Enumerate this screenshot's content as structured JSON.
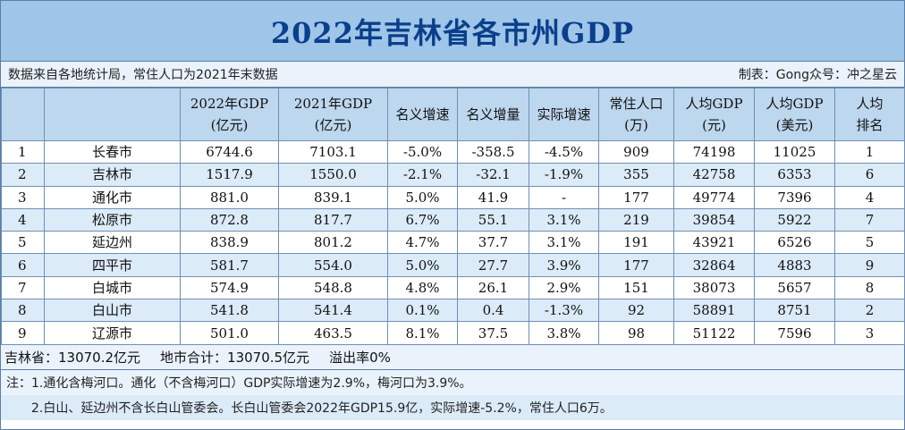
{
  "title": "2022年吉林省各市州GDP",
  "source_left": "数据来自各地统计局，常住人口为2021年末数据",
  "source_right": "制表：Gong众号：冲之星云",
  "headers": [
    {
      "l1": "",
      "l2": ""
    },
    {
      "l1": "",
      "l2": ""
    },
    {
      "l1": "2022年GDP",
      "l2": "(亿元)"
    },
    {
      "l1": "2021年GDP",
      "l2": "(亿元)"
    },
    {
      "l1": "名义增速",
      "l2": ""
    },
    {
      "l1": "名义增量",
      "l2": ""
    },
    {
      "l1": "实际增速",
      "l2": ""
    },
    {
      "l1": "常住人口",
      "l2": "(万)"
    },
    {
      "l1": "人均GDP",
      "l2": "(元)"
    },
    {
      "l1": "人均GDP",
      "l2": "(美元)"
    },
    {
      "l1": "人均",
      "l2": "排名"
    }
  ],
  "rows": [
    [
      "1",
      "长春市",
      "6744.6",
      "7103.1",
      "-5.0%",
      "-358.5",
      "-4.5%",
      "909",
      "74198",
      "11025",
      "1"
    ],
    [
      "2",
      "吉林市",
      "1517.9",
      "1550.0",
      "-2.1%",
      "-32.1",
      "-1.9%",
      "355",
      "42758",
      "6353",
      "6"
    ],
    [
      "3",
      "通化市",
      "881.0",
      "839.1",
      "5.0%",
      "41.9",
      "-",
      "177",
      "49774",
      "7396",
      "4"
    ],
    [
      "4",
      "松原市",
      "872.8",
      "817.7",
      "6.7%",
      "55.1",
      "3.1%",
      "219",
      "39854",
      "5922",
      "7"
    ],
    [
      "5",
      "延边州",
      "838.9",
      "801.2",
      "4.7%",
      "37.7",
      "3.1%",
      "191",
      "43921",
      "6526",
      "5"
    ],
    [
      "6",
      "四平市",
      "581.7",
      "554.0",
      "5.0%",
      "27.7",
      "3.9%",
      "177",
      "32864",
      "4883",
      "9"
    ],
    [
      "7",
      "白城市",
      "574.9",
      "548.8",
      "4.8%",
      "26.1",
      "2.9%",
      "151",
      "38073",
      "5657",
      "8"
    ],
    [
      "8",
      "白山市",
      "541.8",
      "541.4",
      "0.1%",
      "0.4",
      "-1.3%",
      "92",
      "58891",
      "8751",
      "2"
    ],
    [
      "9",
      "辽源市",
      "501.0",
      "463.5",
      "8.1%",
      "37.5",
      "3.8%",
      "98",
      "51122",
      "7596",
      "3"
    ]
  ],
  "summary": {
    "province": "吉林省：13070.2亿元",
    "cities_total": "地市合计：13070.5亿元",
    "overflow": "溢出率0%"
  },
  "notes": {
    "note1": "注：1.通化含梅河口。通化（不含梅河口）GDP实际增速为2.9%，梅河口为3.9%。",
    "note2": "2.白山、延边州不含长白山管委会。长白山管委会2022年GDP15.9亿，实际增速-5.2%，常住人口6万。"
  },
  "colors": {
    "title_bg": "#9fc5e8",
    "title_text": "#0b3f8c",
    "header_bg": "#bdd7ee",
    "stripe": "#dcebf8",
    "border": "#6f8fb3"
  }
}
